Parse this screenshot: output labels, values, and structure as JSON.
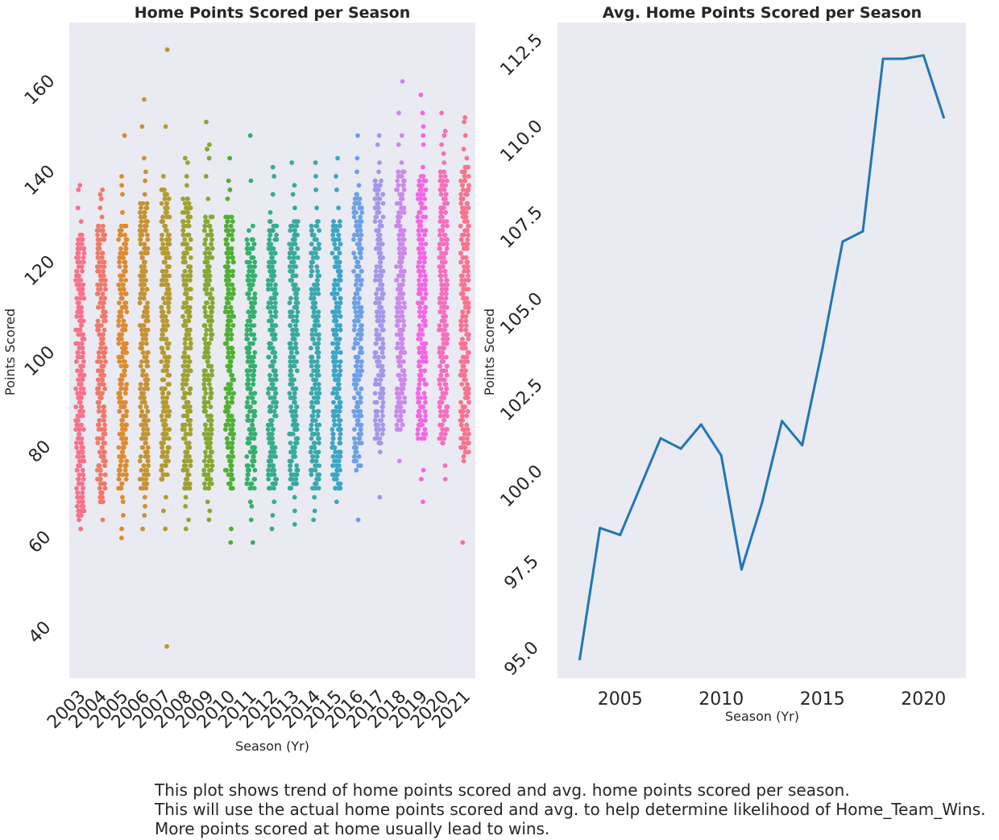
{
  "chart_data": [
    {
      "type": "scatter",
      "subtype": "stripplot",
      "title": "Home Points Scored per Season",
      "xlabel": "Season (Yr)",
      "ylabel": "Points Scored",
      "ylim": [
        30,
        175
      ],
      "yticks": [
        40,
        60,
        80,
        100,
        120,
        140,
        160
      ],
      "grid": false,
      "background": "#eaeaf2",
      "categories": [
        "2003",
        "2004",
        "2005",
        "2006",
        "2007",
        "2008",
        "2009",
        "2010",
        "2011",
        "2012",
        "2013",
        "2014",
        "2015",
        "2016",
        "2017",
        "2018",
        "2019",
        "2020",
        "2021"
      ],
      "series": [
        {
          "season": "2003",
          "color": "#f77189",
          "min": 63,
          "max": 139,
          "core_low": 66,
          "core_high": 128,
          "outliers": [
            63,
            65,
            67,
            131,
            134,
            138,
            139
          ]
        },
        {
          "season": "2004",
          "color": "#f0786a",
          "min": 65,
          "max": 138,
          "core_low": 69,
          "core_high": 130,
          "outliers": [
            65,
            132,
            134,
            136,
            137,
            138
          ]
        },
        {
          "season": "2005",
          "color": "#dd8a30",
          "min": 61,
          "max": 150,
          "core_low": 72,
          "core_high": 130,
          "outliers": [
            61,
            63,
            66,
            69,
            70,
            133,
            137,
            139,
            141,
            150
          ]
        },
        {
          "season": "2006",
          "color": "#c69333",
          "min": 63,
          "max": 158,
          "core_low": 72,
          "core_high": 135,
          "outliers": [
            63,
            66,
            68,
            70,
            137,
            140,
            142,
            145,
            152,
            158
          ]
        },
        {
          "season": "2007",
          "color": "#b49a31",
          "min": 37,
          "max": 169,
          "core_low": 74,
          "core_high": 138,
          "outliers": [
            37,
            63,
            67,
            70,
            141,
            152,
            169
          ]
        },
        {
          "season": "2008",
          "color": "#a0a031",
          "min": 63,
          "max": 145,
          "core_low": 72,
          "core_high": 136,
          "outliers": [
            63,
            65,
            68,
            70,
            139,
            141,
            144,
            145
          ]
        },
        {
          "season": "2009",
          "color": "#84a831",
          "min": 65,
          "max": 153,
          "core_low": 72,
          "core_high": 132,
          "outliers": [
            65,
            67,
            69,
            136,
            141,
            145,
            147,
            148,
            153
          ]
        },
        {
          "season": "2010",
          "color": "#4fb031",
          "min": 60,
          "max": 145,
          "core_low": 72,
          "core_high": 132,
          "outliers": [
            60,
            63,
            136,
            138,
            140,
            145
          ]
        },
        {
          "season": "2011",
          "color": "#33b06c",
          "min": 60,
          "max": 150,
          "core_low": 72,
          "core_high": 127,
          "outliers": [
            60,
            65,
            68,
            69,
            129,
            130,
            140,
            150
          ]
        },
        {
          "season": "2012",
          "color": "#35ad8b",
          "min": 63,
          "max": 143,
          "core_low": 72,
          "core_high": 131,
          "outliers": [
            63,
            66,
            69,
            133,
            137,
            141,
            143
          ]
        },
        {
          "season": "2013",
          "color": "#36ab9c",
          "min": 64,
          "max": 144,
          "core_low": 72,
          "core_high": 131,
          "outliers": [
            64,
            67,
            70,
            134,
            137,
            139,
            144
          ]
        },
        {
          "season": "2014",
          "color": "#38a9ae",
          "min": 65,
          "max": 144,
          "core_low": 72,
          "core_high": 131,
          "outliers": [
            65,
            67,
            70,
            134,
            138,
            141,
            144
          ]
        },
        {
          "season": "2015",
          "color": "#3aa5c7",
          "min": 69,
          "max": 145,
          "core_low": 72,
          "core_high": 131,
          "outliers": [
            69,
            72,
            134,
            138,
            141,
            145
          ]
        },
        {
          "season": "2016",
          "color": "#6ca0e6",
          "min": 65,
          "max": 150,
          "core_low": 77,
          "core_high": 137,
          "outliers": [
            65,
            76,
            139,
            142,
            145,
            150
          ]
        },
        {
          "season": "2017",
          "color": "#a496e8",
          "min": 70,
          "max": 150,
          "core_low": 82,
          "core_high": 140,
          "outliers": [
            70,
            80,
            142,
            144,
            148,
            150
          ]
        },
        {
          "season": "2018",
          "color": "#cc88ea",
          "min": 78,
          "max": 162,
          "core_low": 85,
          "core_high": 142,
          "outliers": [
            78,
            144,
            148,
            150,
            155,
            162
          ]
        },
        {
          "season": "2019",
          "color": "#f466e4",
          "min": 69,
          "max": 159,
          "core_low": 83,
          "core_high": 141,
          "outliers": [
            69,
            74,
            76,
            143,
            148,
            150,
            152,
            155,
            159
          ]
        },
        {
          "season": "2020",
          "color": "#f76ebd",
          "min": 74,
          "max": 155,
          "core_low": 82,
          "core_high": 142,
          "outliers": [
            74,
            77,
            144,
            146,
            148,
            150,
            151,
            155
          ]
        },
        {
          "season": "2021",
          "color": "#f7738f",
          "min": 60,
          "max": 154,
          "core_low": 80,
          "core_high": 143,
          "outliers": [
            60,
            78,
            79,
            145,
            147,
            150,
            153,
            154
          ]
        }
      ]
    },
    {
      "type": "line",
      "title": "Avg. Home Points Scored per Season",
      "xlabel": "Season (Yr)",
      "ylabel": "Points Scored",
      "xlim": [
        2001.9,
        2022.1
      ],
      "ylim": [
        94.45,
        113.45
      ],
      "xticks": [
        2005,
        2010,
        2015,
        2020
      ],
      "yticks": [
        95.0,
        97.5,
        100.0,
        102.5,
        105.0,
        107.5,
        110.0,
        112.5
      ],
      "grid": false,
      "background": "#eaeaf2",
      "color": "#1f77b4",
      "x": [
        2003,
        2004,
        2005,
        2006,
        2007,
        2008,
        2009,
        2010,
        2011,
        2012,
        2013,
        2014,
        2015,
        2016,
        2017,
        2018,
        2019,
        2020,
        2021
      ],
      "y": [
        95.0,
        98.8,
        98.6,
        100.0,
        101.4,
        101.1,
        101.8,
        100.9,
        97.6,
        99.5,
        101.9,
        101.2,
        104.0,
        107.1,
        107.4,
        112.4,
        112.4,
        112.5,
        110.7
      ]
    }
  ],
  "caption": {
    "line1": "This plot shows trend of home points scored and avg. home points scored per season.",
    "line2": "This will use the actual home points scored and avg. to help determine likelihood of Home_Team_Wins.",
    "line3": "More points scored at home usually lead to wins."
  }
}
